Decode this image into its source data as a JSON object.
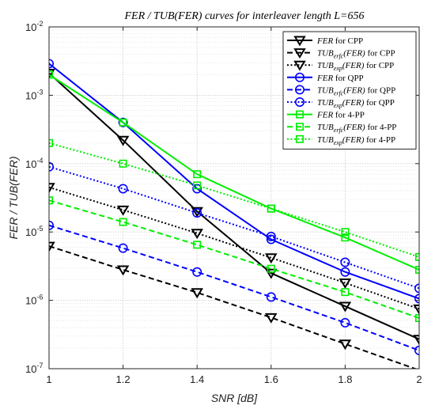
{
  "chart_data": {
    "type": "line",
    "title": "FER / TUB(FER) curves for interleaver length L=656",
    "xlabel": "SNR [dB]",
    "ylabel": "FER / TUB(FER)",
    "yscale": "log",
    "xlim": [
      1,
      2
    ],
    "ylim": [
      1e-07,
      0.01
    ],
    "x": [
      1,
      1.2,
      1.4,
      1.6,
      1.8,
      2
    ],
    "x_tick_labels": [
      "1",
      "1.2",
      "1.4",
      "1.6",
      "1.8",
      "2"
    ],
    "y_ticks": [
      {
        "base": "10",
        "exp": "-7"
      },
      {
        "base": "10",
        "exp": "-6"
      },
      {
        "base": "10",
        "exp": "-5"
      },
      {
        "base": "10",
        "exp": "-4"
      },
      {
        "base": "10",
        "exp": "-3"
      },
      {
        "base": "10",
        "exp": "-2"
      }
    ],
    "grid": true,
    "legend_position": "top-right",
    "series": [
      {
        "name": "FER for CPP",
        "color": "#000000",
        "line": "solid",
        "marker": "triangle-down",
        "values": [
          0.0021,
          0.00022,
          2e-05,
          2.5e-06,
          8.2e-07,
          2.7e-07
        ]
      },
      {
        "name": "TUB_erfc(FER) for CPP",
        "color": "#000000",
        "line": "dashed",
        "marker": "triangle-down",
        "values": [
          6.2e-06,
          2.8e-06,
          1.3e-06,
          5.6e-07,
          2.3e-07,
          9.5e-08
        ]
      },
      {
        "name": "TUB_exp(FER) for CPP",
        "color": "#000000",
        "line": "dotted",
        "marker": "triangle-down",
        "values": [
          4.5e-05,
          2.1e-05,
          9.6e-06,
          4.2e-06,
          1.8e-06,
          7.5e-07
        ]
      },
      {
        "name": "FER for QPP",
        "color": "#0000ff",
        "line": "solid",
        "marker": "circle",
        "values": [
          0.0029,
          0.0004,
          4.3e-05,
          7.8e-06,
          2.6e-06,
          1.06e-06
        ]
      },
      {
        "name": "TUB_erfc(FER) for QPP",
        "color": "#0000ff",
        "line": "dashed",
        "marker": "circle",
        "values": [
          1.25e-05,
          5.8e-06,
          2.6e-06,
          1.12e-06,
          4.7e-07,
          1.85e-07
        ]
      },
      {
        "name": "TUB_exp(FER) for QPP",
        "color": "#0000ff",
        "line": "dotted",
        "marker": "circle",
        "values": [
          9e-05,
          4.3e-05,
          1.9e-05,
          8.6e-06,
          3.6e-06,
          1.5e-06
        ]
      },
      {
        "name": "FER for 4-PP",
        "color": "#00ee00",
        "line": "solid",
        "marker": "square",
        "values": [
          0.002,
          0.0004,
          7e-05,
          2.2e-05,
          8.3e-06,
          2.8e-06
        ]
      },
      {
        "name": "TUB_erfc(FER) for 4-PP",
        "color": "#00ee00",
        "line": "dashed",
        "marker": "square",
        "values": [
          2.9e-05,
          1.4e-05,
          6.5e-06,
          2.9e-06,
          1.32e-06,
          5.5e-07
        ]
      },
      {
        "name": "TUB_exp(FER) for 4-PP",
        "color": "#00ee00",
        "line": "dotted",
        "marker": "square",
        "values": [
          0.0002,
          0.0001,
          4.8e-05,
          2.2e-05,
          1e-05,
          4.3e-06
        ]
      }
    ],
    "legend": [
      {
        "main": "FER",
        "sub": "",
        "arg": "",
        "suffix": " for CPP"
      },
      {
        "main": "TUB",
        "sub": "erfc",
        "arg": "(FER)",
        "suffix": " for CPP"
      },
      {
        "main": "TUB",
        "sub": "exp",
        "arg": "(FER)",
        "suffix": " for CPP"
      },
      {
        "main": "FER",
        "sub": "",
        "arg": "",
        "suffix": " for QPP"
      },
      {
        "main": "TUB",
        "sub": "erfc",
        "arg": "(FER)",
        "suffix": " for QPP"
      },
      {
        "main": "TUB",
        "sub": "exp",
        "arg": "(FER)",
        "suffix": " for QPP"
      },
      {
        "main": "FER",
        "sub": "",
        "arg": "",
        "suffix": " for 4-PP"
      },
      {
        "main": "TUB",
        "sub": "erfc",
        "arg": "(FER)",
        "suffix": " for 4-PP"
      },
      {
        "main": "TUB",
        "sub": "exp",
        "arg": "(FER)",
        "suffix": " for 4-PP"
      }
    ]
  }
}
